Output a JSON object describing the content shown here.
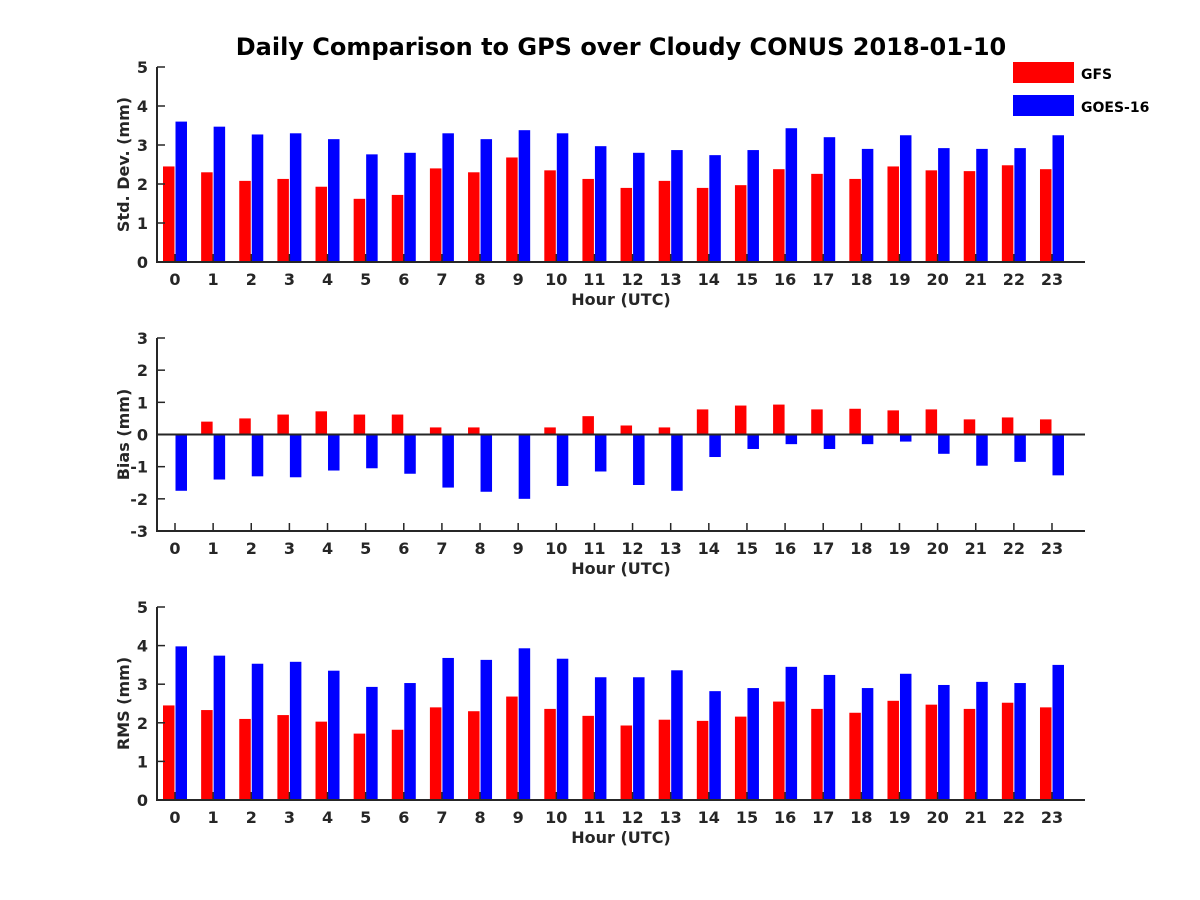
{
  "title": "Daily Comparison to GPS over Cloudy CONUS 2018-01-10",
  "colors": {
    "GFS": "#ff0000",
    "GOES-16": "#0000ff",
    "axis": "#262626"
  },
  "chart_data": [
    {
      "type": "bar",
      "panel": "std-dev",
      "ylabel": "Std. Dev. (mm)",
      "xlabel": "Hour (UTC)",
      "ylim": [
        0,
        5
      ],
      "yticks": [
        0,
        1,
        2,
        3,
        4,
        5
      ],
      "categories": [
        "0",
        "1",
        "2",
        "3",
        "4",
        "5",
        "6",
        "7",
        "8",
        "9",
        "10",
        "11",
        "12",
        "13",
        "14",
        "15",
        "16",
        "17",
        "18",
        "19",
        "20",
        "21",
        "22",
        "23"
      ],
      "legend": "top-right",
      "series": [
        {
          "name": "GFS",
          "values": [
            2.45,
            2.3,
            2.08,
            2.13,
            1.93,
            1.62,
            1.72,
            2.4,
            2.3,
            2.68,
            2.35,
            2.13,
            1.9,
            2.08,
            1.9,
            1.97,
            2.38,
            2.26,
            2.13,
            2.45,
            2.35,
            2.33,
            2.48,
            2.38
          ]
        },
        {
          "name": "GOES-16",
          "values": [
            3.6,
            3.47,
            3.27,
            3.3,
            3.15,
            2.76,
            2.8,
            3.3,
            3.15,
            3.38,
            3.3,
            2.97,
            2.8,
            2.87,
            2.74,
            2.87,
            3.43,
            3.2,
            2.9,
            3.25,
            2.92,
            2.9,
            2.92,
            3.25
          ]
        }
      ]
    },
    {
      "type": "bar",
      "panel": "bias",
      "ylabel": "Bias (mm)",
      "xlabel": "Hour (UTC)",
      "ylim": [
        -3,
        3
      ],
      "yticks": [
        -3,
        -2,
        -1,
        0,
        1,
        2,
        3
      ],
      "categories": [
        "0",
        "1",
        "2",
        "3",
        "4",
        "5",
        "6",
        "7",
        "8",
        "9",
        "10",
        "11",
        "12",
        "13",
        "14",
        "15",
        "16",
        "17",
        "18",
        "19",
        "20",
        "21",
        "22",
        "23"
      ],
      "series": [
        {
          "name": "GFS",
          "values": [
            0,
            0.4,
            0.5,
            0.62,
            0.72,
            0.62,
            0.62,
            0.22,
            0.22,
            0,
            0.22,
            0.57,
            0.28,
            0.22,
            0.78,
            0.9,
            0.93,
            0.78,
            0.8,
            0.75,
            0.78,
            0.47,
            0.53,
            0.47
          ]
        },
        {
          "name": "GOES-16",
          "values": [
            -1.75,
            -1.4,
            -1.3,
            -1.33,
            -1.12,
            -1.05,
            -1.22,
            -1.65,
            -1.78,
            -2.0,
            -1.6,
            -1.15,
            -1.57,
            -1.75,
            -0.7,
            -0.45,
            -0.3,
            -0.45,
            -0.3,
            -0.22,
            -0.6,
            -0.97,
            -0.85,
            -1.27
          ]
        }
      ]
    },
    {
      "type": "bar",
      "panel": "rms",
      "ylabel": "RMS (mm)",
      "xlabel": "Hour (UTC)",
      "ylim": [
        0,
        5
      ],
      "yticks": [
        0,
        1,
        2,
        3,
        4,
        5
      ],
      "categories": [
        "0",
        "1",
        "2",
        "3",
        "4",
        "5",
        "6",
        "7",
        "8",
        "9",
        "10",
        "11",
        "12",
        "13",
        "14",
        "15",
        "16",
        "17",
        "18",
        "19",
        "20",
        "21",
        "22",
        "23"
      ],
      "series": [
        {
          "name": "GFS",
          "values": [
            2.45,
            2.33,
            2.1,
            2.2,
            2.03,
            1.72,
            1.82,
            2.4,
            2.3,
            2.68,
            2.36,
            2.18,
            1.93,
            2.08,
            2.05,
            2.16,
            2.55,
            2.36,
            2.26,
            2.57,
            2.47,
            2.36,
            2.52,
            2.4
          ]
        },
        {
          "name": "GOES-16",
          "values": [
            3.98,
            3.74,
            3.53,
            3.58,
            3.35,
            2.93,
            3.03,
            3.68,
            3.63,
            3.93,
            3.66,
            3.18,
            3.18,
            3.36,
            2.82,
            2.9,
            3.45,
            3.24,
            2.9,
            3.27,
            2.98,
            3.06,
            3.03,
            3.5
          ]
        }
      ]
    }
  ]
}
